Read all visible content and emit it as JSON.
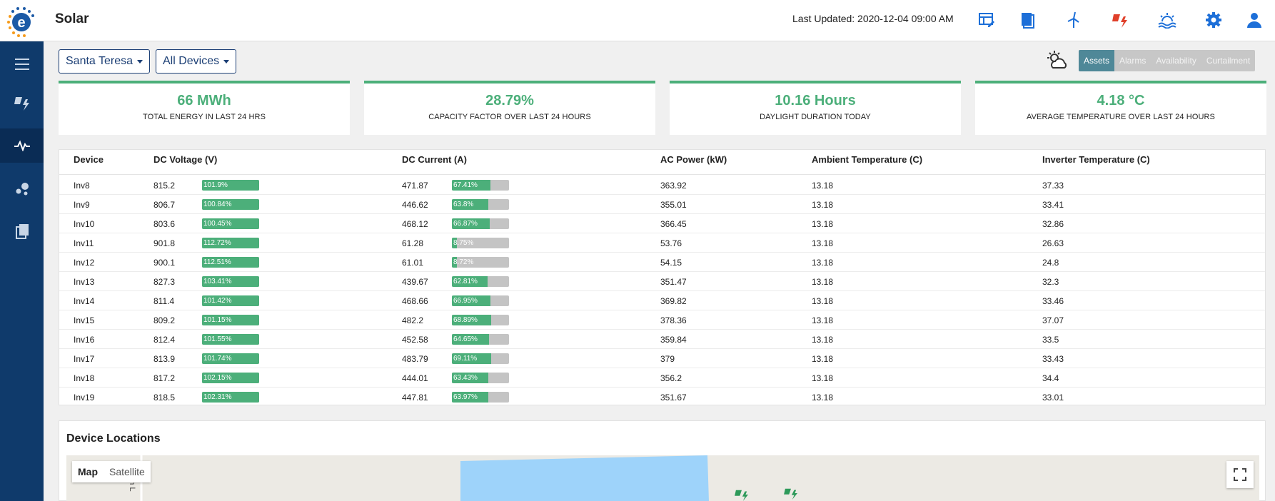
{
  "app": {
    "title": "Solar",
    "last_updated": "Last Updated: 2020-12-04 09:00 AM"
  },
  "colors": {
    "sidebar": "#0f3a6b",
    "accent_green": "#4caf7a",
    "active_tab": "#4f8898",
    "primary_blue": "#1c3f75"
  },
  "top_icons": [
    "dashboard-edit-icon",
    "report-book-icon",
    "wind-turbine-icon",
    "solar-alert-icon",
    "sunset-water-icon",
    "settings-gear-icon",
    "user-profile-icon"
  ],
  "sidebar": {
    "items": [
      "menu-icon",
      "solar-power-icon",
      "activity-pulse-icon",
      "cluster-dots-icon",
      "documents-icon"
    ],
    "active_index": 2
  },
  "filters": {
    "site": "Santa Teresa",
    "devices": "All Devices"
  },
  "view_tabs": [
    "Assets",
    "Alarms",
    "Availability",
    "Curtailment"
  ],
  "active_tab": "Assets",
  "kpis": [
    {
      "value": "66 MWh",
      "label": "TOTAL ENERGY IN LAST 24 HRS"
    },
    {
      "value": "28.79%",
      "label": "CAPACITY FACTOR OVER LAST 24 HOURS"
    },
    {
      "value": "10.16 Hours",
      "label": "DAYLIGHT DURATION TODAY"
    },
    {
      "value": "4.18 °C",
      "label": "AVERAGE TEMPERATURE OVER LAST 24 HOURS"
    }
  ],
  "table": {
    "columns": [
      "Device",
      "DC Voltage (V)",
      "DC Current (A)",
      "AC Power (kW)",
      "Ambient Temperature (C)",
      "Inverter Temperature (C)"
    ],
    "rows": [
      {
        "device": "Inv8",
        "dc_voltage": "815.2",
        "dc_voltage_pct": 101.9,
        "dc_voltage_pct_label": "101.9%",
        "dc_current": "471.87",
        "dc_current_pct": 67.41,
        "dc_current_pct_label": "67.41%",
        "ac_power": "363.92",
        "ambient": "13.18",
        "inverter": "37.33"
      },
      {
        "device": "Inv9",
        "dc_voltage": "806.7",
        "dc_voltage_pct": 100.84,
        "dc_voltage_pct_label": "100.84%",
        "dc_current": "446.62",
        "dc_current_pct": 63.8,
        "dc_current_pct_label": "63.8%",
        "ac_power": "355.01",
        "ambient": "13.18",
        "inverter": "33.41"
      },
      {
        "device": "Inv10",
        "dc_voltage": "803.6",
        "dc_voltage_pct": 100.45,
        "dc_voltage_pct_label": "100.45%",
        "dc_current": "468.12",
        "dc_current_pct": 66.87,
        "dc_current_pct_label": "66.87%",
        "ac_power": "366.45",
        "ambient": "13.18",
        "inverter": "32.86"
      },
      {
        "device": "Inv11",
        "dc_voltage": "901.8",
        "dc_voltage_pct": 112.72,
        "dc_voltage_pct_label": "112.72%",
        "dc_current": "61.28",
        "dc_current_pct": 8.75,
        "dc_current_pct_label": "8.75%",
        "ac_power": "53.76",
        "ambient": "13.18",
        "inverter": "26.63"
      },
      {
        "device": "Inv12",
        "dc_voltage": "900.1",
        "dc_voltage_pct": 112.51,
        "dc_voltage_pct_label": "112.51%",
        "dc_current": "61.01",
        "dc_current_pct": 8.72,
        "dc_current_pct_label": "8.72%",
        "ac_power": "54.15",
        "ambient": "13.18",
        "inverter": "24.8"
      },
      {
        "device": "Inv13",
        "dc_voltage": "827.3",
        "dc_voltage_pct": 103.41,
        "dc_voltage_pct_label": "103.41%",
        "dc_current": "439.67",
        "dc_current_pct": 62.81,
        "dc_current_pct_label": "62.81%",
        "ac_power": "351.47",
        "ambient": "13.18",
        "inverter": "32.3"
      },
      {
        "device": "Inv14",
        "dc_voltage": "811.4",
        "dc_voltage_pct": 101.42,
        "dc_voltage_pct_label": "101.42%",
        "dc_current": "468.66",
        "dc_current_pct": 66.95,
        "dc_current_pct_label": "66.95%",
        "ac_power": "369.82",
        "ambient": "13.18",
        "inverter": "33.46"
      },
      {
        "device": "Inv15",
        "dc_voltage": "809.2",
        "dc_voltage_pct": 101.15,
        "dc_voltage_pct_label": "101.15%",
        "dc_current": "482.2",
        "dc_current_pct": 68.89,
        "dc_current_pct_label": "68.89%",
        "ac_power": "378.36",
        "ambient": "13.18",
        "inverter": "37.07"
      },
      {
        "device": "Inv16",
        "dc_voltage": "812.4",
        "dc_voltage_pct": 101.55,
        "dc_voltage_pct_label": "101.55%",
        "dc_current": "452.58",
        "dc_current_pct": 64.65,
        "dc_current_pct_label": "64.65%",
        "ac_power": "359.84",
        "ambient": "13.18",
        "inverter": "33.5"
      },
      {
        "device": "Inv17",
        "dc_voltage": "813.9",
        "dc_voltage_pct": 101.74,
        "dc_voltage_pct_label": "101.74%",
        "dc_current": "483.79",
        "dc_current_pct": 69.11,
        "dc_current_pct_label": "69.11%",
        "ac_power": "379",
        "ambient": "13.18",
        "inverter": "33.43"
      },
      {
        "device": "Inv18",
        "dc_voltage": "817.2",
        "dc_voltage_pct": 102.15,
        "dc_voltage_pct_label": "102.15%",
        "dc_current": "444.01",
        "dc_current_pct": 63.43,
        "dc_current_pct_label": "63.43%",
        "ac_power": "356.2",
        "ambient": "13.18",
        "inverter": "34.4"
      },
      {
        "device": "Inv19",
        "dc_voltage": "818.5",
        "dc_voltage_pct": 102.31,
        "dc_voltage_pct_label": "102.31%",
        "dc_current": "447.81",
        "dc_current_pct": 63.97,
        "dc_current_pct_label": "63.97%",
        "ac_power": "351.67",
        "ambient": "13.18",
        "inverter": "33.01"
      }
    ]
  },
  "map": {
    "title": "Device Locations",
    "toggle": [
      "Map",
      "Satellite"
    ],
    "active_toggle": "Map",
    "street_label": "artin L"
  }
}
